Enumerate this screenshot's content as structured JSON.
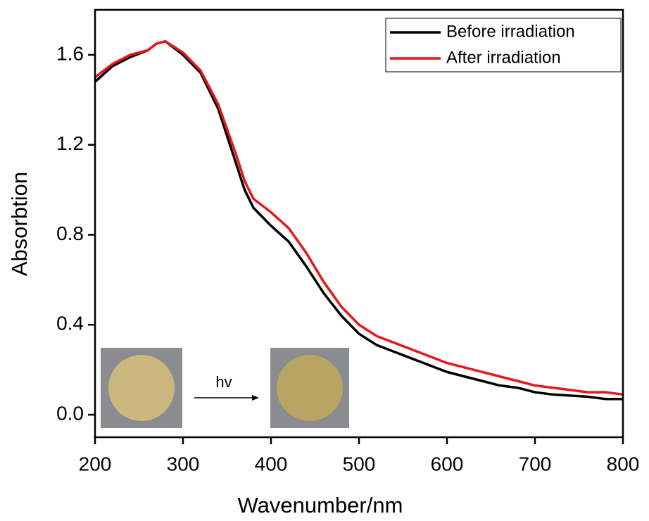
{
  "chart_data": {
    "type": "line",
    "x_label": "Wavenumber/nm",
    "y_label": "Absorbtion",
    "annotation": "hv",
    "x": [
      200,
      220,
      240,
      260,
      270,
      280,
      300,
      320,
      340,
      360,
      370,
      380,
      400,
      420,
      440,
      460,
      480,
      500,
      520,
      540,
      560,
      580,
      600,
      620,
      640,
      660,
      680,
      700,
      720,
      740,
      760,
      780,
      800
    ],
    "series": [
      {
        "name": "Before irradiation",
        "color": "#000000",
        "values": [
          1.48,
          1.55,
          1.59,
          1.62,
          1.65,
          1.66,
          1.6,
          1.52,
          1.36,
          1.12,
          1.0,
          0.92,
          0.84,
          0.77,
          0.66,
          0.54,
          0.44,
          0.36,
          0.31,
          0.28,
          0.25,
          0.22,
          0.19,
          0.17,
          0.15,
          0.13,
          0.12,
          0.1,
          0.09,
          0.085,
          0.08,
          0.07,
          0.07
        ]
      },
      {
        "name": "After irradiation",
        "color": "#e8161b",
        "values": [
          1.5,
          1.56,
          1.6,
          1.62,
          1.65,
          1.66,
          1.61,
          1.53,
          1.38,
          1.16,
          1.04,
          0.96,
          0.9,
          0.83,
          0.72,
          0.59,
          0.48,
          0.4,
          0.35,
          0.32,
          0.29,
          0.26,
          0.23,
          0.21,
          0.19,
          0.17,
          0.15,
          0.13,
          0.12,
          0.11,
          0.1,
          0.1,
          0.09
        ]
      }
    ],
    "xlim": [
      200,
      800
    ],
    "ylim": [
      -0.1,
      1.8
    ],
    "xticks": [
      200,
      300,
      400,
      500,
      600,
      700,
      800
    ],
    "yticks": [
      {
        "value": 0,
        "label": "0.0"
      },
      0.4,
      0.8,
      1.2,
      1.6
    ],
    "legend": "upper right"
  }
}
